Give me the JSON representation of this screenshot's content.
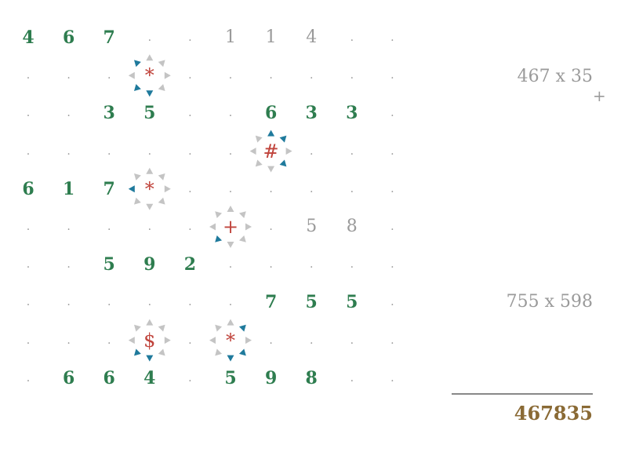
{
  "grid": {
    "rows": [
      [
        "4",
        "6",
        "7",
        ".",
        ".",
        "1",
        "1",
        "4",
        ".",
        "."
      ],
      [
        ".",
        ".",
        ".",
        "*",
        ".",
        ".",
        ".",
        ".",
        ".",
        "."
      ],
      [
        ".",
        ".",
        "3",
        "5",
        ".",
        ".",
        "6",
        "3",
        "3",
        "."
      ],
      [
        ".",
        ".",
        ".",
        ".",
        ".",
        ".",
        "#",
        ".",
        ".",
        "."
      ],
      [
        "6",
        "1",
        "7",
        "*",
        ".",
        ".",
        ".",
        ".",
        ".",
        "."
      ],
      [
        ".",
        ".",
        ".",
        ".",
        ".",
        "+",
        ".",
        "5",
        "8",
        "."
      ],
      [
        ".",
        ".",
        "5",
        "9",
        "2",
        ".",
        ".",
        ".",
        ".",
        "."
      ],
      [
        ".",
        ".",
        ".",
        ".",
        ".",
        ".",
        "7",
        "5",
        "5",
        "."
      ],
      [
        ".",
        ".",
        ".",
        "$",
        ".",
        "*",
        ".",
        ".",
        ".",
        "."
      ],
      [
        ".",
        "6",
        "6",
        "4",
        ".",
        "5",
        "9",
        "8",
        ".",
        "."
      ]
    ],
    "styles": [
      [
        "b",
        "b",
        "b",
        "d",
        "d",
        "g",
        "g",
        "g",
        "d",
        "d"
      ],
      [
        "d",
        "d",
        "d",
        "o",
        "d",
        "d",
        "d",
        "d",
        "d",
        "d"
      ],
      [
        "d",
        "d",
        "b",
        "b",
        "d",
        "d",
        "b",
        "b",
        "b",
        "d"
      ],
      [
        "d",
        "d",
        "d",
        "d",
        "d",
        "d",
        "o",
        "d",
        "d",
        "d"
      ],
      [
        "b",
        "b",
        "b",
        "o",
        "d",
        "d",
        "d",
        "d",
        "d",
        "d"
      ],
      [
        "d",
        "d",
        "d",
        "d",
        "d",
        "o",
        "d",
        "g",
        "g",
        "d"
      ],
      [
        "d",
        "d",
        "b",
        "b",
        "b",
        "d",
        "d",
        "d",
        "d",
        "d"
      ],
      [
        "d",
        "d",
        "d",
        "d",
        "d",
        "d",
        "b",
        "b",
        "b",
        "d"
      ],
      [
        "d",
        "d",
        "d",
        "o",
        "d",
        "o",
        "d",
        "d",
        "d",
        "d"
      ],
      [
        "d",
        "b",
        "b",
        "b",
        "d",
        "b",
        "b",
        "b",
        "d",
        "d"
      ]
    ],
    "operators": [
      {
        "row": 1,
        "col": 3,
        "active": [
          "NW",
          "SW",
          "S"
        ]
      },
      {
        "row": 3,
        "col": 6,
        "active": [
          "N",
          "NE",
          "SE"
        ]
      },
      {
        "row": 4,
        "col": 3,
        "active": [
          "W"
        ]
      },
      {
        "row": 5,
        "col": 5,
        "active": [
          "SW"
        ]
      },
      {
        "row": 8,
        "col": 3,
        "active": [
          "SW",
          "S"
        ]
      },
      {
        "row": 8,
        "col": 5,
        "active": [
          "NE",
          "S",
          "SE"
        ]
      }
    ]
  },
  "labels": {
    "product_1": "467 x 35",
    "plus": "+",
    "product_2": "755 x 598",
    "result": "467835"
  },
  "colors": {
    "digit_bold": "#2e7d4f",
    "digit_gray": "#9a9a9a",
    "operator": "#c0443c",
    "arrow_active": "#1f7a9c",
    "arrow_inactive": "#c4c4c4",
    "result": "#8a6a35"
  }
}
